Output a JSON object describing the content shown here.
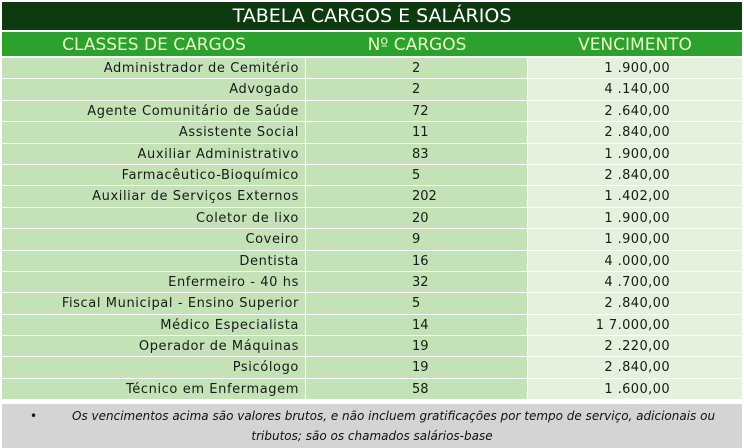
{
  "title": "TABELA CARGOS E SALÁRIOS",
  "columns": [
    "CLASSES DE CARGOS",
    "Nº CARGOS",
    "VENCIMENTO"
  ],
  "rows": [
    {
      "cargo": "Administrador de Cemitério",
      "qtd": "2",
      "venc": "1 .900,00"
    },
    {
      "cargo": "Advogado",
      "qtd": "2",
      "venc": "4 .140,00"
    },
    {
      "cargo": "Agente Comunitário de Saúde",
      "qtd": "72",
      "venc": "2 .640,00"
    },
    {
      "cargo": "Assistente Social",
      "qtd": "11",
      "venc": "2 .840,00"
    },
    {
      "cargo": "Auxiliar Administrativo",
      "qtd": "83",
      "venc": "1 .900,00"
    },
    {
      "cargo": "Farmacêutico-Bioquímico",
      "qtd": "5",
      "venc": "2 .840,00"
    },
    {
      "cargo": "Auxiliar de Serviços Externos",
      "qtd": "202",
      "venc": "1 .402,00"
    },
    {
      "cargo": "Coletor de lixo",
      "qtd": "20",
      "venc": "1 .900,00"
    },
    {
      "cargo": "Coveiro",
      "qtd": "9",
      "venc": "1 .900,00"
    },
    {
      "cargo": "Dentista",
      "qtd": "16",
      "venc": "4 .000,00"
    },
    {
      "cargo": "Enfermeiro - 40 hs",
      "qtd": "32",
      "venc": "4 .700,00"
    },
    {
      "cargo": "Fiscal Municipal - Ensino Superior",
      "qtd": "5",
      "venc": "2 .840,00"
    },
    {
      "cargo": "Médico Especialista",
      "qtd": "14",
      "venc": "1 7.000,00"
    },
    {
      "cargo": "Operador de Máquinas",
      "qtd": "19",
      "venc": "2 .220,00"
    },
    {
      "cargo": "Psicólogo",
      "qtd": "19",
      "venc": "2 .840,00"
    },
    {
      "cargo": "Técnico em Enfermagem",
      "qtd": "58",
      "venc": "1 .600,00"
    }
  ],
  "note": {
    "bullet": "•",
    "line1": "Os vencimentos acima são valores brutos, e não incluem gratificações por tempo de serviço, adicionais ou",
    "line2": "tributos; são os chamados salários-base"
  }
}
